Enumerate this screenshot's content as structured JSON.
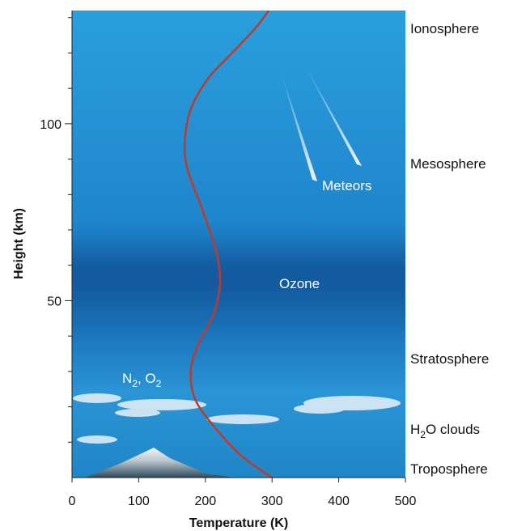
{
  "chart_data": {
    "type": "line",
    "xlabel": "Temperature (K)",
    "ylabel": "Height (km)",
    "xlim": [
      0,
      500
    ],
    "ylim": [
      0,
      132
    ],
    "x_ticks": [
      0,
      100,
      200,
      300,
      400,
      500
    ],
    "y_ticks": [
      50,
      100
    ],
    "series": [
      {
        "color": "#c0392b",
        "points": [
          {
            "x": 300,
            "y": 0
          },
          {
            "x": 255,
            "y": 6
          },
          {
            "x": 215,
            "y": 14
          },
          {
            "x": 185,
            "y": 22
          },
          {
            "x": 178,
            "y": 30
          },
          {
            "x": 190,
            "y": 38
          },
          {
            "x": 212,
            "y": 46
          },
          {
            "x": 222,
            "y": 55
          },
          {
            "x": 216,
            "y": 64
          },
          {
            "x": 195,
            "y": 76
          },
          {
            "x": 172,
            "y": 88
          },
          {
            "x": 170,
            "y": 97
          },
          {
            "x": 180,
            "y": 105
          },
          {
            "x": 205,
            "y": 113
          },
          {
            "x": 240,
            "y": 120
          },
          {
            "x": 275,
            "y": 127
          },
          {
            "x": 295,
            "y": 132
          }
        ]
      }
    ],
    "annotations": {
      "meteors": "Meteors",
      "ozone": "Ozone",
      "gases_n": "N",
      "gases_sub1": "2",
      "gases_comma": ", O",
      "gases_sub2": "2"
    },
    "layers": {
      "ionosphere": "Ionosphere",
      "mesosphere": "Mesosphere",
      "stratosphere": "Stratosphere",
      "clouds_h": "H",
      "clouds_sub": "2",
      "clouds_rest": "O clouds",
      "troposphere": "Troposphere"
    }
  }
}
